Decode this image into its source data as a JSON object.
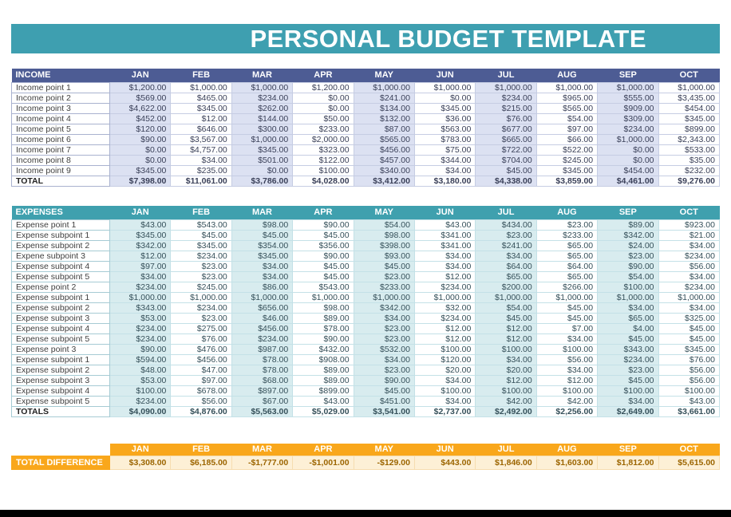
{
  "title": "PERSONAL BUDGET TEMPLATE",
  "months": [
    "JAN",
    "FEB",
    "MAR",
    "APR",
    "MAY",
    "JUN",
    "JUL",
    "AUG",
    "SEP",
    "OCT"
  ],
  "income": {
    "header": "INCOME",
    "rows": [
      {
        "label": "Income point 1",
        "values": [
          "$1,200.00",
          "$1,000.00",
          "$1,000.00",
          "$1,200.00",
          "$1,000.00",
          "$1,000.00",
          "$1,000.00",
          "$1,000.00",
          "$1,000.00",
          "$1,000.00"
        ]
      },
      {
        "label": "Income point 2",
        "values": [
          "$569.00",
          "$465.00",
          "$234.00",
          "$0.00",
          "$241.00",
          "$0.00",
          "$234.00",
          "$965.00",
          "$555.00",
          "$3,435.00"
        ]
      },
      {
        "label": "Income point 3",
        "values": [
          "$4,622.00",
          "$345.00",
          "$262.00",
          "$0.00",
          "$134.00",
          "$345.00",
          "$215.00",
          "$565.00",
          "$909.00",
          "$454.00"
        ]
      },
      {
        "label": "Income point 4",
        "values": [
          "$452.00",
          "$12.00",
          "$144.00",
          "$50.00",
          "$132.00",
          "$36.00",
          "$76.00",
          "$54.00",
          "$309.00",
          "$345.00"
        ]
      },
      {
        "label": "Income point 5",
        "values": [
          "$120.00",
          "$646.00",
          "$300.00",
          "$233.00",
          "$87.00",
          "$563.00",
          "$677.00",
          "$97.00",
          "$234.00",
          "$899.00"
        ]
      },
      {
        "label": "Income point 6",
        "values": [
          "$90.00",
          "$3,567.00",
          "$1,000.00",
          "$2,000.00",
          "$565.00",
          "$783.00",
          "$665.00",
          "$66.00",
          "$1,000.00",
          "$2,343.00"
        ]
      },
      {
        "label": "Income point 7",
        "values": [
          "$0.00",
          "$4,757.00",
          "$345.00",
          "$323.00",
          "$456.00",
          "$75.00",
          "$722.00",
          "$522.00",
          "$0.00",
          "$533.00"
        ]
      },
      {
        "label": "Income point 8",
        "values": [
          "$0.00",
          "$34.00",
          "$501.00",
          "$122.00",
          "$457.00",
          "$344.00",
          "$704.00",
          "$245.00",
          "$0.00",
          "$35.00"
        ]
      },
      {
        "label": "Income point 9",
        "values": [
          "$345.00",
          "$235.00",
          "$0.00",
          "$100.00",
          "$340.00",
          "$34.00",
          "$45.00",
          "$345.00",
          "$454.00",
          "$232.00"
        ]
      }
    ],
    "total": {
      "label": "TOTAL",
      "values": [
        "$7,398.00",
        "$11,061.00",
        "$3,786.00",
        "$4,028.00",
        "$3,412.00",
        "$3,180.00",
        "$4,338.00",
        "$3,859.00",
        "$4,461.00",
        "$9,276.00"
      ]
    }
  },
  "expenses": {
    "header": "EXPENSES",
    "rows": [
      {
        "label": "Expense point 1",
        "values": [
          "$43.00",
          "$543.00",
          "$98.00",
          "$90.00",
          "$54.00",
          "$43.00",
          "$434.00",
          "$23.00",
          "$89.00",
          "$923.00"
        ]
      },
      {
        "label": "Expense subpoint 1",
        "values": [
          "$345.00",
          "$45.00",
          "$45.00",
          "$45.00",
          "$98.00",
          "$341.00",
          "$23.00",
          "$233.00",
          "$342.00",
          "$21.00"
        ]
      },
      {
        "label": "Expense subpoint 2",
        "values": [
          "$342.00",
          "$345.00",
          "$354.00",
          "$356.00",
          "$398.00",
          "$341.00",
          "$241.00",
          "$65.00",
          "$24.00",
          "$34.00"
        ]
      },
      {
        "label": "Expene subpoint 3",
        "values": [
          "$12.00",
          "$234.00",
          "$345.00",
          "$90.00",
          "$93.00",
          "$34.00",
          "$34.00",
          "$65.00",
          "$23.00",
          "$234.00"
        ]
      },
      {
        "label": "Expense subpoint 4",
        "values": [
          "$97.00",
          "$23.00",
          "$34.00",
          "$45.00",
          "$45.00",
          "$34.00",
          "$64.00",
          "$64.00",
          "$90.00",
          "$56.00"
        ]
      },
      {
        "label": "Expense subpoint 5",
        "values": [
          "$34.00",
          "$23.00",
          "$34.00",
          "$45.00",
          "$23.00",
          "$12.00",
          "$65.00",
          "$65.00",
          "$54.00",
          "$34.00"
        ]
      },
      {
        "label": "Expense point 2",
        "values": [
          "$234.00",
          "$245.00",
          "$86.00",
          "$543.00",
          "$233.00",
          "$234.00",
          "$200.00",
          "$266.00",
          "$100.00",
          "$234.00"
        ]
      },
      {
        "label": "Expense subpoint 1",
        "values": [
          "$1,000.00",
          "$1,000.00",
          "$1,000.00",
          "$1,000.00",
          "$1,000.00",
          "$1,000.00",
          "$1,000.00",
          "$1,000.00",
          "$1,000.00",
          "$1,000.00"
        ]
      },
      {
        "label": "Expense subpoint 2",
        "values": [
          "$343.00",
          "$234.00",
          "$656.00",
          "$98.00",
          "$342.00",
          "$32.00",
          "$54.00",
          "$45.00",
          "$34.00",
          "$34.00"
        ]
      },
      {
        "label": "Expense subpoint 3",
        "values": [
          "$53.00",
          "$23.00",
          "$46.00",
          "$89.00",
          "$34.00",
          "$234.00",
          "$45.00",
          "$45.00",
          "$65.00",
          "$325.00"
        ]
      },
      {
        "label": "Expense subpoint 4",
        "values": [
          "$234.00",
          "$275.00",
          "$456.00",
          "$78.00",
          "$23.00",
          "$12.00",
          "$12.00",
          "$7.00",
          "$4.00",
          "$45.00"
        ]
      },
      {
        "label": "Expense subpoint 5",
        "values": [
          "$234.00",
          "$76.00",
          "$234.00",
          "$90.00",
          "$23.00",
          "$12.00",
          "$12.00",
          "$34.00",
          "$45.00",
          "$45.00"
        ]
      },
      {
        "label": "Expense point 3",
        "values": [
          "$90.00",
          "$476.00",
          "$987.00",
          "$432.00",
          "$532.00",
          "$100.00",
          "$100.00",
          "$100.00",
          "$343.00",
          "$345.00"
        ]
      },
      {
        "label": "Expense subpoint 1",
        "values": [
          "$594.00",
          "$456.00",
          "$78.00",
          "$908.00",
          "$34.00",
          "$120.00",
          "$34.00",
          "$56.00",
          "$234.00",
          "$76.00"
        ]
      },
      {
        "label": "Expense subpoint 2",
        "values": [
          "$48.00",
          "$47.00",
          "$78.00",
          "$89.00",
          "$23.00",
          "$20.00",
          "$20.00",
          "$34.00",
          "$23.00",
          "$56.00"
        ]
      },
      {
        "label": "Expense subpoint 3",
        "values": [
          "$53.00",
          "$97.00",
          "$68.00",
          "$89.00",
          "$90.00",
          "$34.00",
          "$12.00",
          "$12.00",
          "$45.00",
          "$56.00"
        ]
      },
      {
        "label": "Expense subpoint 4",
        "values": [
          "$100.00",
          "$678.00",
          "$897.00",
          "$899.00",
          "$45.00",
          "$100.00",
          "$100.00",
          "$100.00",
          "$100.00",
          "$100.00"
        ]
      },
      {
        "label": "Expense subpoint 5",
        "values": [
          "$234.00",
          "$56.00",
          "$67.00",
          "$43.00",
          "$451.00",
          "$34.00",
          "$42.00",
          "$42.00",
          "$34.00",
          "$43.00"
        ]
      }
    ],
    "total": {
      "label": "TOTALS",
      "values": [
        "$4,090.00",
        "$4,876.00",
        "$5,563.00",
        "$5,029.00",
        "$3,541.00",
        "$2,737.00",
        "$2,492.00",
        "$2,256.00",
        "$2,649.00",
        "$3,661.00"
      ]
    }
  },
  "difference": {
    "label": "TOTAL DIFFERENCE",
    "values": [
      "$3,308.00",
      "$6,185.00",
      "-$1,777.00",
      "-$1,001.00",
      "-$129.00",
      "$443.00",
      "$1,846.00",
      "$1,603.00",
      "$1,812.00",
      "$5,615.00"
    ]
  },
  "colors": {
    "title_bg": "#3e9fb0",
    "income_header_bg": "#4d5c94",
    "income_shade": "#dce1f2",
    "expenses_header_bg": "#3fa0ae",
    "expenses_shade": "#d8ecef",
    "difference_header_bg": "#f9a71b",
    "difference_value_bg": "#fdf0d6",
    "difference_value_text": "#9c6500"
  }
}
